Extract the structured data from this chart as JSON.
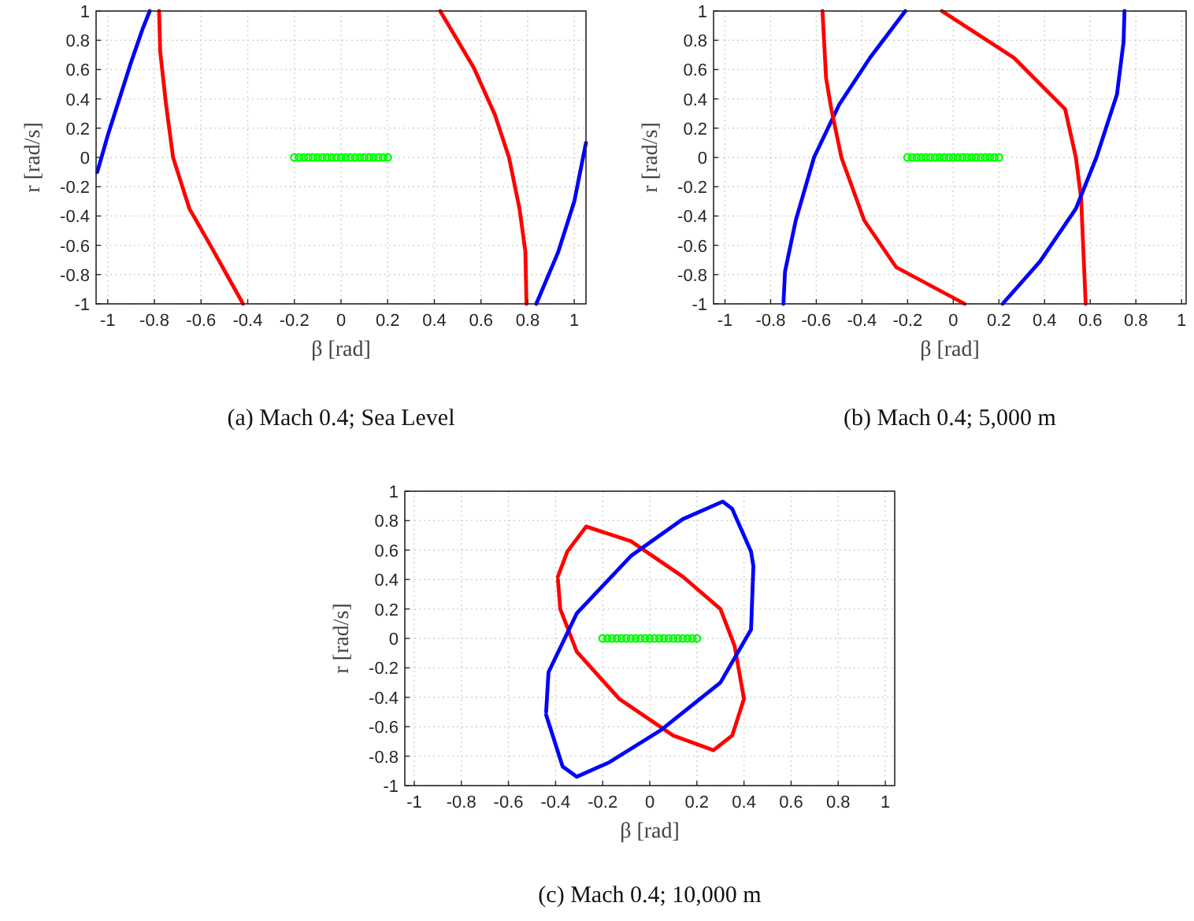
{
  "chart_data": [
    {
      "type": "line",
      "title": "(a) Mach 0.4; Sea Level",
      "xlabel": "β [rad]",
      "ylabel": "r [rad/s]",
      "xlim": [
        -1.05,
        1.05
      ],
      "ylim": [
        -1,
        1
      ],
      "xticks": [
        -1,
        -0.8,
        -0.6,
        -0.4,
        -0.2,
        0,
        0.2,
        0.4,
        0.6,
        0.8,
        1
      ],
      "yticks": [
        -1,
        -0.8,
        -0.6,
        -0.4,
        -0.2,
        0,
        0.2,
        0.4,
        0.6,
        0.8,
        1
      ],
      "grid": true,
      "marker": "none",
      "line_style": "solid",
      "series": [
        {
          "color": "#0000ff",
          "x": [
            -1.045,
            -1.0,
            -0.95,
            -0.9,
            -0.85,
            -0.82
          ],
          "values": [
            -0.1,
            0.15,
            0.4,
            0.65,
            0.88,
            1
          ]
        },
        {
          "color": "#ff0000",
          "x": [
            -0.78,
            -0.775,
            -0.75,
            -0.72,
            -0.65,
            -0.56,
            -0.42
          ],
          "values": [
            1,
            0.72,
            0.36,
            0,
            -0.35,
            -0.6,
            -1
          ]
        },
        {
          "color": "#ff0000",
          "x": [
            0.425,
            0.57,
            0.66,
            0.72,
            0.765,
            0.79,
            0.795
          ],
          "values": [
            1,
            0.61,
            0.29,
            0,
            -0.35,
            -0.64,
            -1
          ]
        },
        {
          "color": "#0000ff",
          "x": [
            0.837,
            0.93,
            1.0,
            1.05
          ],
          "values": [
            -1,
            -0.65,
            -0.3,
            0.1
          ]
        },
        {
          "type": "scatter",
          "marker": "circle",
          "color": "#00ff00",
          "x": [
            -0.2,
            -0.18,
            -0.16,
            -0.14,
            -0.12,
            -0.1,
            -0.08,
            -0.06,
            -0.04,
            -0.02,
            0,
            0.02,
            0.04,
            0.06,
            0.08,
            0.1,
            0.12,
            0.14,
            0.16,
            0.18,
            0.2
          ],
          "values": [
            0,
            0,
            0,
            0,
            0,
            0,
            0,
            0,
            0,
            0,
            0,
            0,
            0,
            0,
            0,
            0,
            0,
            0,
            0,
            0,
            0
          ]
        }
      ]
    },
    {
      "type": "line",
      "title": "(b) Mach 0.4; 5,000 m",
      "xlabel": "β [rad]",
      "ylabel": "r [rad/s]",
      "xlim": [
        -1.05,
        1.02
      ],
      "ylim": [
        -1,
        1
      ],
      "xticks": [
        -1,
        -0.8,
        -0.6,
        -0.4,
        -0.2,
        0,
        0.2,
        0.4,
        0.6,
        0.8,
        1
      ],
      "yticks": [
        -1,
        -0.8,
        -0.6,
        -0.4,
        -0.2,
        0,
        0.2,
        0.4,
        0.6,
        0.8,
        1
      ],
      "grid": true,
      "marker": "none",
      "line_style": "solid",
      "series": [
        {
          "color": "#0000ff",
          "x": [
            -0.744,
            -0.737,
            -0.69,
            -0.61,
            -0.5,
            -0.365,
            -0.21
          ],
          "values": [
            -1,
            -0.78,
            -0.43,
            0,
            0.36,
            0.68,
            1
          ]
        },
        {
          "color": "#ff0000",
          "x": [
            -0.573,
            -0.557,
            -0.534,
            -0.49,
            -0.39,
            -0.25,
            0.05
          ],
          "values": [
            1,
            0.54,
            0.33,
            0,
            -0.43,
            -0.75,
            -1
          ]
        },
        {
          "color": "#ff0000",
          "x": [
            -0.05,
            0.266,
            0.49,
            0.537,
            0.56,
            0.58
          ],
          "values": [
            1,
            0.68,
            0.33,
            0,
            -0.28,
            -1
          ]
        },
        {
          "color": "#0000ff",
          "x": [
            0.216,
            0.38,
            0.537,
            0.627,
            0.717,
            0.746,
            0.75
          ],
          "values": [
            -1,
            -0.71,
            -0.35,
            0,
            0.43,
            0.79,
            1
          ]
        },
        {
          "type": "scatter",
          "marker": "circle",
          "color": "#00ff00",
          "x": [
            -0.2,
            -0.18,
            -0.16,
            -0.14,
            -0.12,
            -0.1,
            -0.08,
            -0.06,
            -0.04,
            -0.02,
            0,
            0.02,
            0.04,
            0.06,
            0.08,
            0.1,
            0.12,
            0.14,
            0.16,
            0.18,
            0.2
          ],
          "values": [
            0,
            0,
            0,
            0,
            0,
            0,
            0,
            0,
            0,
            0,
            0,
            0,
            0,
            0,
            0,
            0,
            0,
            0,
            0,
            0,
            0
          ]
        }
      ]
    },
    {
      "type": "line",
      "title": "(c) Mach 0.4; 10,000 m",
      "xlabel": "β [rad]",
      "ylabel": "r [rad/s]",
      "xlim": [
        -1.04,
        1.04
      ],
      "ylim": [
        -1,
        1
      ],
      "xticks": [
        -1,
        -0.8,
        -0.6,
        -0.4,
        -0.2,
        0,
        0.2,
        0.4,
        0.6,
        0.8,
        1
      ],
      "yticks": [
        -1,
        -0.8,
        -0.6,
        -0.4,
        -0.2,
        0,
        0.2,
        0.4,
        0.6,
        0.8,
        1
      ],
      "grid": true,
      "marker": "none",
      "line_style": "solid",
      "series": [
        {
          "color": "#ff0000",
          "x": [
            -0.39,
            -0.35,
            -0.27,
            -0.08,
            0.14,
            0.3,
            0.36,
            0.4,
            0.35,
            0.27,
            0.1,
            -0.13,
            -0.31,
            -0.38,
            -0.39
          ],
          "values": [
            0.42,
            0.59,
            0.76,
            0.66,
            0.42,
            0.2,
            -0.05,
            -0.41,
            -0.66,
            -0.76,
            -0.66,
            -0.41,
            -0.09,
            0.2,
            0.4
          ]
        },
        {
          "color": "#0000ff",
          "x": [
            -0.44,
            -0.43,
            -0.31,
            -0.08,
            0.14,
            0.31,
            0.35,
            0.43,
            0.44,
            0.43,
            0.3,
            0.05,
            -0.17,
            -0.31,
            -0.37,
            -0.44
          ],
          "values": [
            -0.5,
            -0.23,
            0.17,
            0.56,
            0.81,
            0.93,
            0.88,
            0.59,
            0.49,
            0.06,
            -0.3,
            -0.62,
            -0.84,
            -0.94,
            -0.87,
            -0.52
          ]
        },
        {
          "type": "scatter",
          "marker": "circle",
          "color": "#00ff00",
          "x": [
            -0.2,
            -0.18,
            -0.16,
            -0.14,
            -0.12,
            -0.1,
            -0.08,
            -0.06,
            -0.04,
            -0.02,
            0,
            0.02,
            0.04,
            0.06,
            0.08,
            0.1,
            0.12,
            0.14,
            0.16,
            0.18,
            0.2
          ],
          "values": [
            0,
            0,
            0,
            0,
            0,
            0,
            0,
            0,
            0,
            0,
            0,
            0,
            0,
            0,
            0,
            0,
            0,
            0,
            0,
            0,
            0
          ]
        }
      ]
    }
  ]
}
